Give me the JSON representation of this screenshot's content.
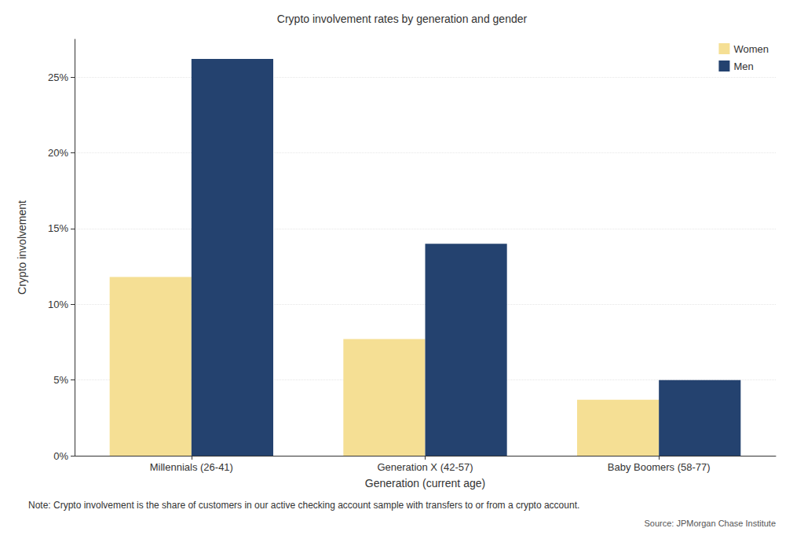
{
  "chart_data": {
    "type": "bar",
    "title": "Crypto involvement rates by generation and gender",
    "x_label": "Generation (current age)",
    "y_label": "Crypto involvement",
    "categories": [
      "Millennials (26-41)",
      "Generation X (42-57)",
      "Baby Boomers (58-77)"
    ],
    "series": [
      {
        "name": "Women",
        "color": "#f5df94",
        "values": [
          11.8,
          7.7,
          3.7
        ]
      },
      {
        "name": "Men",
        "color": "#24426f",
        "values": [
          26.2,
          14.0,
          5.0
        ]
      }
    ],
    "ylim": [
      0,
      27.5
    ],
    "yticks": [
      {
        "value": 0,
        "label": "0%"
      },
      {
        "value": 5,
        "label": "5%"
      },
      {
        "value": 10,
        "label": "10%"
      },
      {
        "value": 15,
        "label": "15%"
      },
      {
        "value": 20,
        "label": "20%"
      },
      {
        "value": 25,
        "label": "25%"
      }
    ],
    "grid": true,
    "legend": "top-right",
    "note": "Note: Crypto involvement is the share of customers in our active checking account sample with transfers to or from a crypto account.",
    "source": "Source: JPMorgan Chase Institute"
  }
}
